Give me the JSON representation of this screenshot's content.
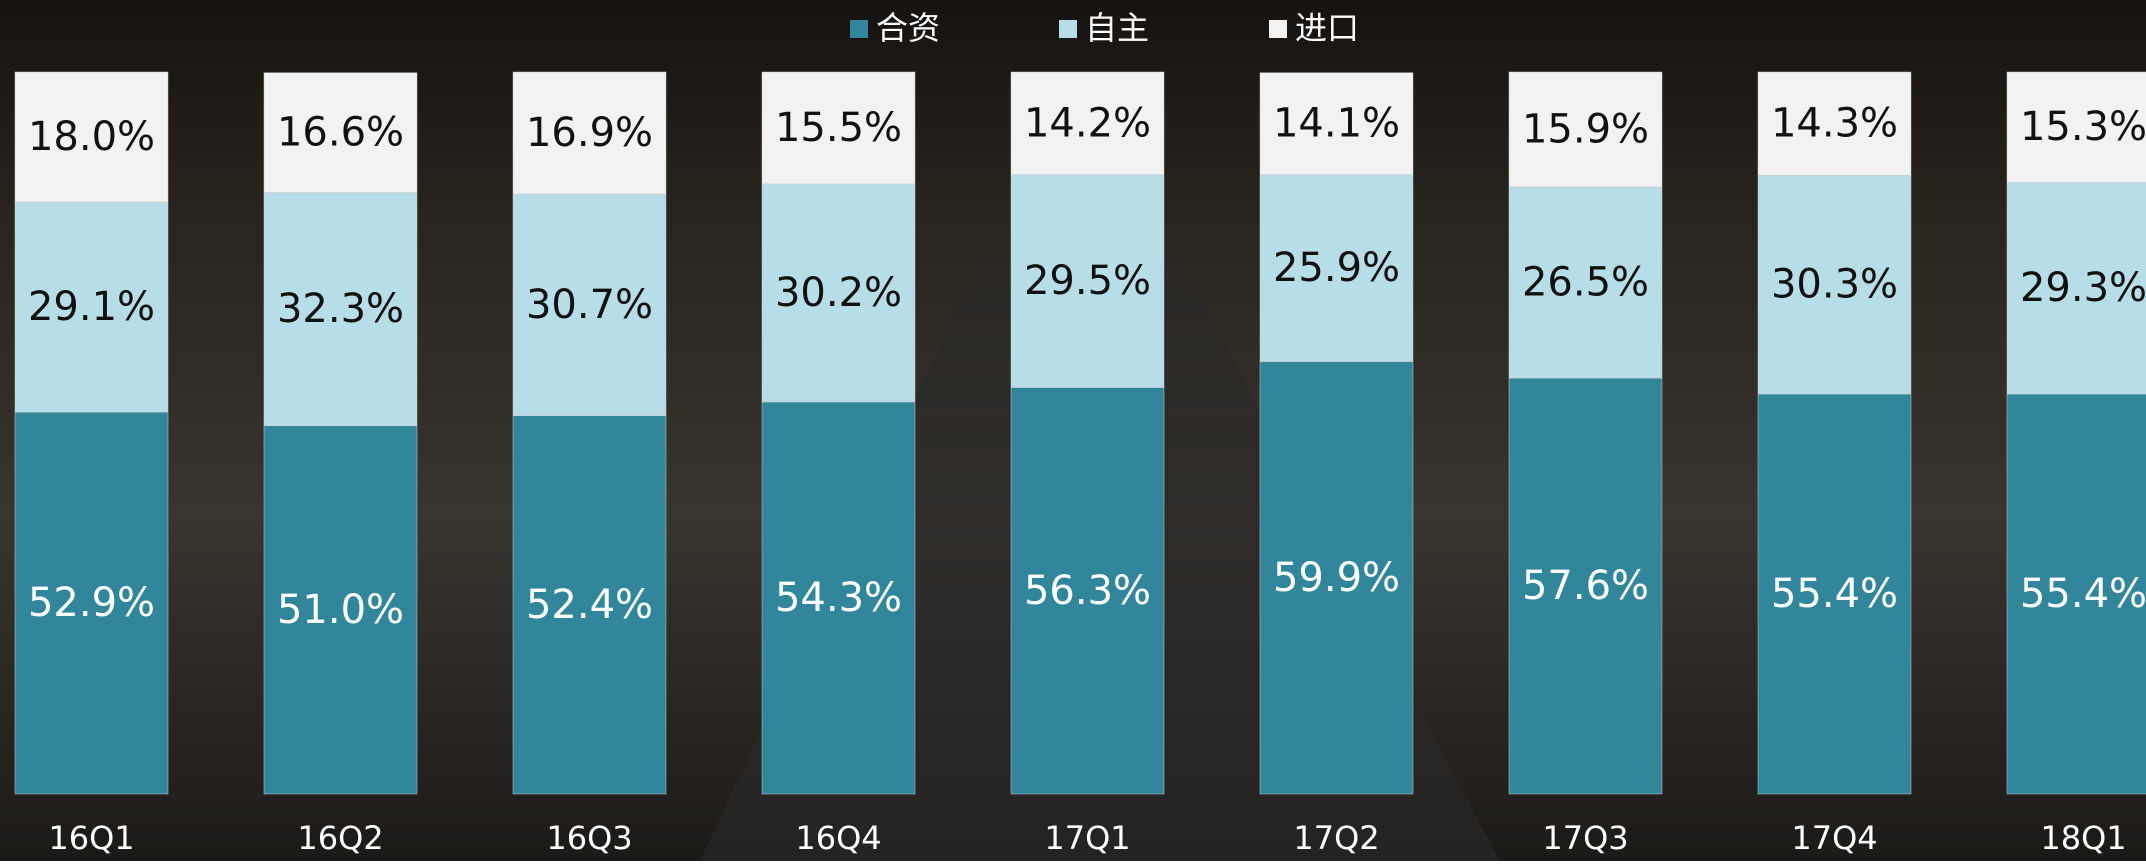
{
  "chart_data": {
    "type": "stacked_bar",
    "categories": [
      "16Q1",
      "16Q2",
      "16Q3",
      "16Q4",
      "17Q1",
      "17Q2",
      "17Q3",
      "17Q4",
      "18Q1"
    ],
    "series": [
      {
        "name": "合资",
        "color": "#31869b",
        "label_color": "#ffffff",
        "values": [
          52.9,
          51.0,
          52.4,
          54.3,
          56.3,
          59.9,
          57.6,
          55.4,
          55.4
        ],
        "value_labels": [
          "52.9%",
          "51.0%",
          "52.4%",
          "54.3%",
          "56.3%",
          "59.9%",
          "57.6%",
          "55.4%",
          "55.4%"
        ]
      },
      {
        "name": "自主",
        "color": "#b7dde8",
        "label_color": "#111111",
        "values": [
          29.1,
          32.3,
          30.7,
          30.2,
          29.5,
          25.9,
          26.5,
          30.3,
          29.3
        ],
        "value_labels": [
          "29.1%",
          "32.3%",
          "30.7%",
          "30.2%",
          "29.5%",
          "25.9%",
          "26.5%",
          "30.3%",
          "29.3%"
        ]
      },
      {
        "name": "进口",
        "color": "#f2f2f2",
        "label_color": "#111111",
        "values": [
          18.0,
          16.6,
          16.9,
          15.5,
          14.2,
          14.1,
          15.9,
          14.3,
          15.3
        ],
        "value_labels": [
          "18.0%",
          "16.6%",
          "16.9%",
          "15.5%",
          "14.2%",
          "14.1%",
          "15.9%",
          "14.3%",
          "15.3%"
        ]
      }
    ],
    "ylim": [
      0,
      100
    ],
    "legend": "top"
  }
}
